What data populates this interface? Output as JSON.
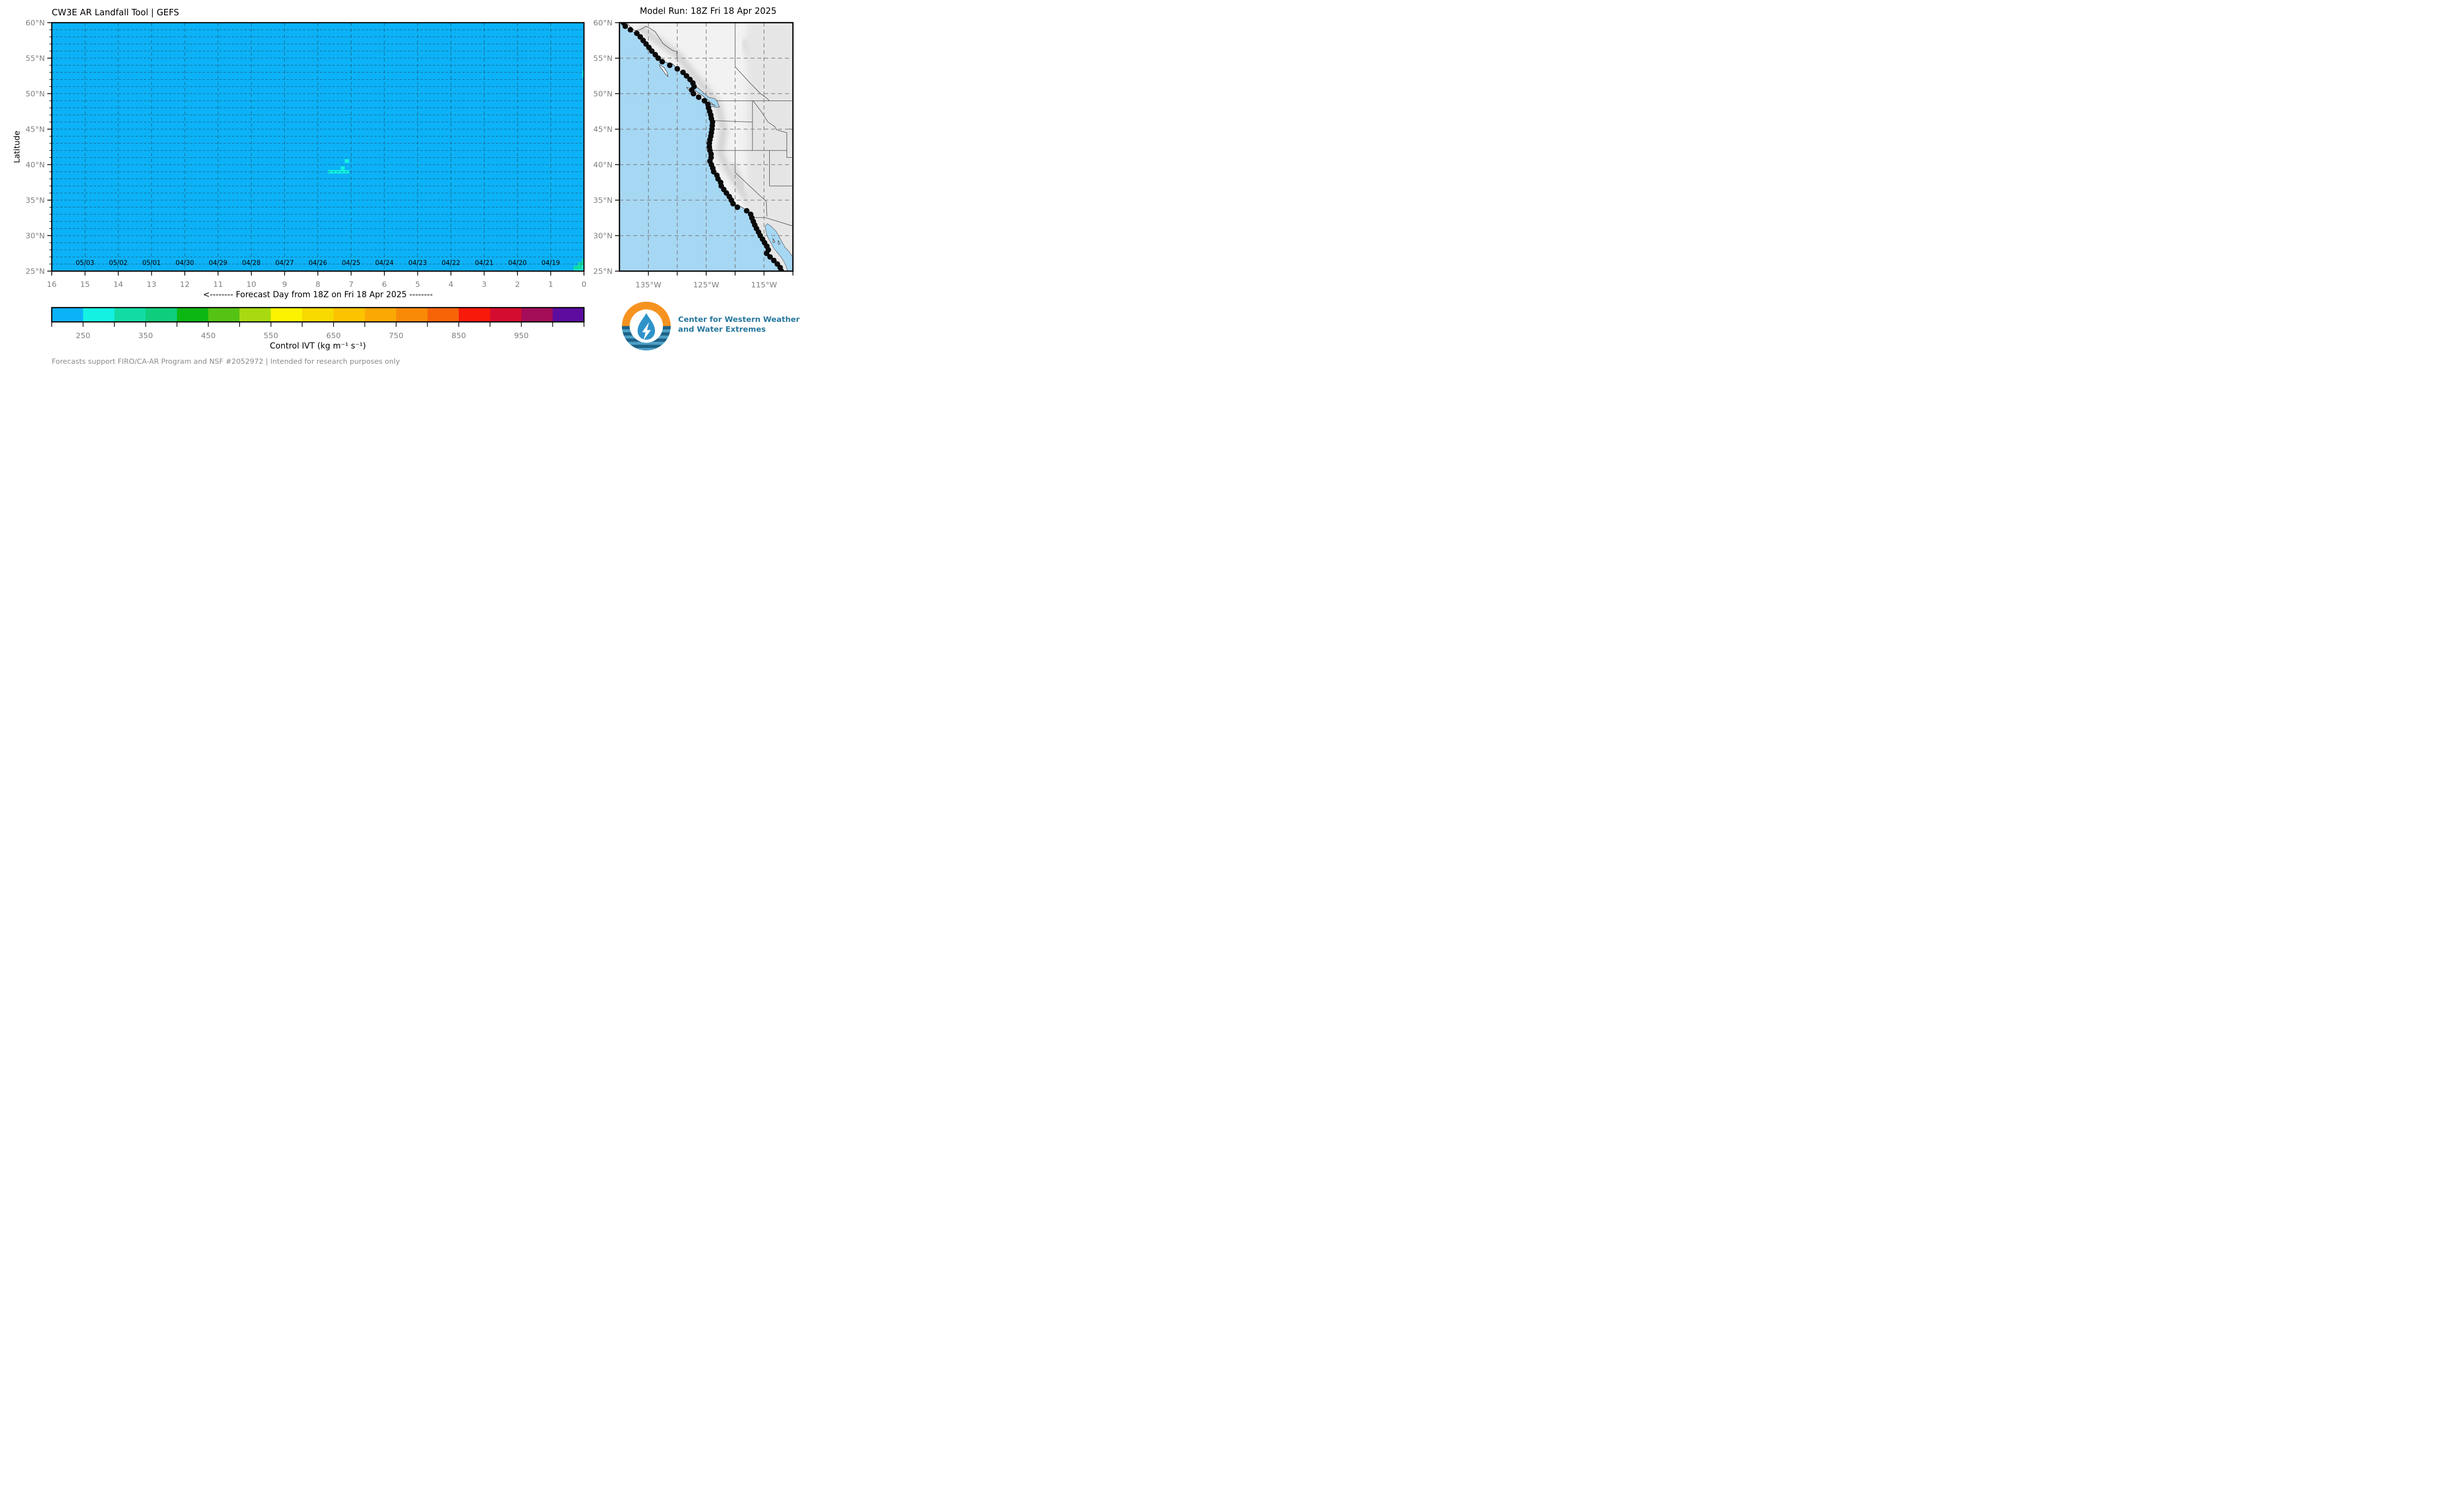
{
  "page": {
    "footer": "Forecasts support FIRO/CA-AR Program and NSF #2052972 | Intended for research purposes only"
  },
  "logo": {
    "org_line1": "Center for Western Weather",
    "org_line2": "and Water Extremes",
    "orange": "#F69320",
    "teal_text": "#27789E",
    "stripe_light": "#4DA0C6",
    "stripe_dark": "#1E6287",
    "drop": "#2E93C9"
  },
  "chart_data": {
    "heatmap": {
      "type": "heatmap",
      "title": "CW3E AR Landfall Tool | GEFS",
      "xlabel": "<-------- Forecast Day from 18Z on Fri 18 Apr 2025 --------",
      "ylabel": "Latitude",
      "x_axis": {
        "range": [
          16,
          0
        ],
        "tick_values": [
          16,
          15,
          14,
          13,
          12,
          11,
          10,
          9,
          8,
          7,
          6,
          5,
          4,
          3,
          2,
          1,
          0
        ]
      },
      "y_axis": {
        "range": [
          25,
          60
        ],
        "tick_values": [
          60,
          55,
          50,
          45,
          40,
          35,
          30,
          25
        ],
        "suffix": "°N",
        "minor_step_deg": 1
      },
      "grid": {
        "x_step_days": 1,
        "y_step_deg": 1,
        "color": "#1E5F7F",
        "style": "dashed"
      },
      "background_color": "#0CB2F7",
      "background_meaning": "Control IVT in lowest bin 200-250 everywhere except listed cells",
      "date_labels": [
        {
          "day": 15,
          "label": "05/03"
        },
        {
          "day": 14,
          "label": "05/02"
        },
        {
          "day": 13,
          "label": "05/01"
        },
        {
          "day": 12,
          "label": "04/30"
        },
        {
          "day": 11,
          "label": "04/29"
        },
        {
          "day": 10,
          "label": "04/28"
        },
        {
          "day": 9,
          "label": "04/27"
        },
        {
          "day": 8,
          "label": "04/26"
        },
        {
          "day": 7,
          "label": "04/25"
        },
        {
          "day": 6,
          "label": "04/24"
        },
        {
          "day": 5,
          "label": "04/23"
        },
        {
          "day": 4,
          "label": "04/22"
        },
        {
          "day": 3,
          "label": "04/21"
        },
        {
          "day": 2,
          "label": "04/20"
        },
        {
          "day": 1,
          "label": "04/19"
        }
      ],
      "cell_colors": {
        "250-300": "#13F1E2",
        "300-350": "#12DCA4"
      },
      "cells": [
        {
          "day_start": 7.19,
          "day_end": 7.06,
          "lat_south": 40.25,
          "lat_north": 40.75,
          "ivt_bin": "250-300"
        },
        {
          "day_start": 7.31,
          "day_end": 7.19,
          "lat_south": 39.25,
          "lat_north": 39.75,
          "ivt_bin": "250-300"
        },
        {
          "day_start": 7.69,
          "day_end": 7.06,
          "lat_south": 38.75,
          "lat_north": 39.25,
          "ivt_bin": "250-300"
        },
        {
          "day_start": 0.05,
          "day_end": 0.0,
          "lat_south": 52.25,
          "lat_north": 53.25,
          "ivt_bin": "250-300"
        },
        {
          "day_start": 0.06,
          "day_end": 0.0,
          "lat_south": 26.25,
          "lat_north": 26.75,
          "ivt_bin": "300-350"
        },
        {
          "day_start": 0.19,
          "day_end": 0.0,
          "lat_south": 25.75,
          "lat_north": 26.25,
          "ivt_bin": "300-350"
        },
        {
          "day_start": 0.31,
          "day_end": 0.06,
          "lat_south": 25.25,
          "lat_north": 25.75,
          "ivt_bin": "300-350"
        },
        {
          "day_start": 0.06,
          "day_end": 0.0,
          "lat_south": 25.25,
          "lat_north": 25.75,
          "ivt_bin": "250-300"
        },
        {
          "day_start": 0.31,
          "day_end": 0.0,
          "lat_south": 25.0,
          "lat_north": 25.25,
          "ivt_bin": "250-300"
        }
      ]
    },
    "colorbar": {
      "type": "colorbar",
      "label": "Control IVT (kg m⁻¹ s⁻¹)",
      "min": 200,
      "max": 1050,
      "step": 50,
      "colors": [
        "#0CB2F7",
        "#14F1E4",
        "#12DCA4",
        "#0FCE7D",
        "#0CB713",
        "#55C314",
        "#A9DA11",
        "#FBF300",
        "#F8D900",
        "#FCC301",
        "#FBA805",
        "#F98A06",
        "#F76408",
        "#F9190A",
        "#D40D30",
        "#A40D59",
        "#5D0C9F"
      ],
      "labeled_ticks": [
        250,
        350,
        450,
        550,
        650,
        750,
        850,
        950
      ]
    },
    "map": {
      "type": "map",
      "title": "Model Run: 18Z Fri 18 Apr 2025",
      "lon_range": [
        -140,
        -110
      ],
      "lat_range": [
        25,
        60
      ],
      "lat_tick_values": [
        60,
        55,
        50,
        45,
        40,
        35,
        30,
        25
      ],
      "lat_suffix": "°N",
      "lon_tick_values": [
        -135,
        -130,
        -125,
        -120,
        -115,
        -110
      ],
      "lon_labels": [
        {
          "lon": -135,
          "label": "135°W"
        },
        {
          "lon": -125,
          "label": "125°W"
        },
        {
          "lon": -115,
          "label": "115°W"
        }
      ],
      "ocean_color": "#A6D7F3",
      "land_color": "#F2F2F2",
      "grid_step_deg": 5,
      "landfall_points": [
        [
          60.0,
          -139.3
        ],
        [
          59.5,
          -139.0
        ],
        [
          59.0,
          -138.1
        ],
        [
          58.5,
          -137.0
        ],
        [
          58.0,
          -136.4
        ],
        [
          57.5,
          -135.9
        ],
        [
          57.0,
          -135.4
        ],
        [
          56.5,
          -134.9
        ],
        [
          56.0,
          -134.4
        ],
        [
          55.5,
          -133.8
        ],
        [
          55.0,
          -133.3
        ],
        [
          54.5,
          -132.6
        ],
        [
          54.0,
          -131.3
        ],
        [
          53.5,
          -130.0
        ],
        [
          53.0,
          -129.0
        ],
        [
          52.5,
          -128.4
        ],
        [
          52.0,
          -127.8
        ],
        [
          51.5,
          -127.3
        ],
        [
          51.0,
          -127.1
        ],
        [
          50.5,
          -127.5
        ],
        [
          50.0,
          -127.2
        ],
        [
          49.5,
          -126.3
        ],
        [
          49.0,
          -125.3
        ],
        [
          48.5,
          -124.7
        ],
        [
          48.0,
          -124.6
        ],
        [
          47.5,
          -124.4
        ],
        [
          47.0,
          -124.2
        ],
        [
          46.5,
          -124.1
        ],
        [
          46.0,
          -123.9
        ],
        [
          45.5,
          -123.95
        ],
        [
          45.0,
          -124.0
        ],
        [
          44.5,
          -124.1
        ],
        [
          44.0,
          -124.2
        ],
        [
          43.5,
          -124.35
        ],
        [
          43.0,
          -124.45
        ],
        [
          42.5,
          -124.45
        ],
        [
          42.0,
          -124.35
        ],
        [
          41.5,
          -124.15
        ],
        [
          41.0,
          -124.15
        ],
        [
          40.5,
          -124.35
        ],
        [
          40.0,
          -124.1
        ],
        [
          39.5,
          -123.85
        ],
        [
          39.0,
          -123.7
        ],
        [
          38.5,
          -123.15
        ],
        [
          38.0,
          -122.95
        ],
        [
          37.5,
          -122.5
        ],
        [
          37.0,
          -122.4
        ],
        [
          36.5,
          -121.95
        ],
        [
          36.0,
          -121.5
        ],
        [
          35.5,
          -121.0
        ],
        [
          35.0,
          -120.65
        ],
        [
          34.5,
          -120.35
        ],
        [
          34.0,
          -119.6
        ],
        [
          33.5,
          -118.0
        ],
        [
          33.0,
          -117.3
        ],
        [
          32.5,
          -117.1
        ],
        [
          32.0,
          -116.85
        ],
        [
          31.5,
          -116.6
        ],
        [
          31.0,
          -116.3
        ],
        [
          30.5,
          -115.95
        ],
        [
          30.0,
          -115.65
        ],
        [
          29.5,
          -115.25
        ],
        [
          29.0,
          -114.9
        ],
        [
          28.5,
          -114.5
        ],
        [
          28.0,
          -114.25
        ],
        [
          27.5,
          -114.55
        ],
        [
          27.0,
          -113.95
        ],
        [
          26.5,
          -113.3
        ],
        [
          26.0,
          -112.7
        ],
        [
          25.5,
          -112.2
        ],
        [
          25.0,
          -112.0
        ]
      ]
    }
  }
}
